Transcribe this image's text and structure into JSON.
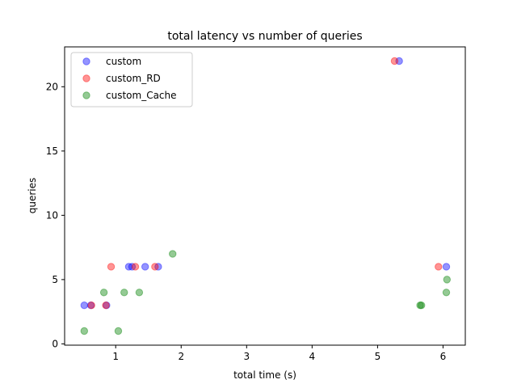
{
  "chart_data": {
    "type": "scatter",
    "title": "total latency vs number of queries",
    "xlabel": "total time (s)",
    "ylabel": "queries",
    "xlim": [
      0.22,
      6.34
    ],
    "ylim": [
      -0.1,
      23.1
    ],
    "xticks": [
      1,
      2,
      3,
      4,
      5,
      6
    ],
    "yticks": [
      0,
      5,
      10,
      15,
      20
    ],
    "grid": false,
    "legend_position": "top-left",
    "series": [
      {
        "name": "custom",
        "color": "#0000ff",
        "points": [
          {
            "x": 0.52,
            "y": 3
          },
          {
            "x": 0.62,
            "y": 3
          },
          {
            "x": 0.86,
            "y": 3
          },
          {
            "x": 1.2,
            "y": 6
          },
          {
            "x": 1.25,
            "y": 6
          },
          {
            "x": 1.45,
            "y": 6
          },
          {
            "x": 1.65,
            "y": 6
          },
          {
            "x": 5.33,
            "y": 22
          },
          {
            "x": 6.05,
            "y": 6
          }
        ]
      },
      {
        "name": "custom_RD",
        "color": "#ff0000",
        "points": [
          {
            "x": 0.63,
            "y": 3
          },
          {
            "x": 0.85,
            "y": 3
          },
          {
            "x": 0.93,
            "y": 6
          },
          {
            "x": 1.3,
            "y": 6
          },
          {
            "x": 1.6,
            "y": 6
          },
          {
            "x": 5.26,
            "y": 22
          },
          {
            "x": 5.93,
            "y": 6
          }
        ]
      },
      {
        "name": "custom_Cache",
        "color": "#008000",
        "points": [
          {
            "x": 0.52,
            "y": 1
          },
          {
            "x": 1.04,
            "y": 1
          },
          {
            "x": 0.82,
            "y": 4
          },
          {
            "x": 1.13,
            "y": 4
          },
          {
            "x": 1.36,
            "y": 4
          },
          {
            "x": 1.87,
            "y": 7
          },
          {
            "x": 5.65,
            "y": 3
          },
          {
            "x": 5.67,
            "y": 3
          },
          {
            "x": 6.05,
            "y": 4
          },
          {
            "x": 6.06,
            "y": 5
          }
        ]
      }
    ]
  }
}
